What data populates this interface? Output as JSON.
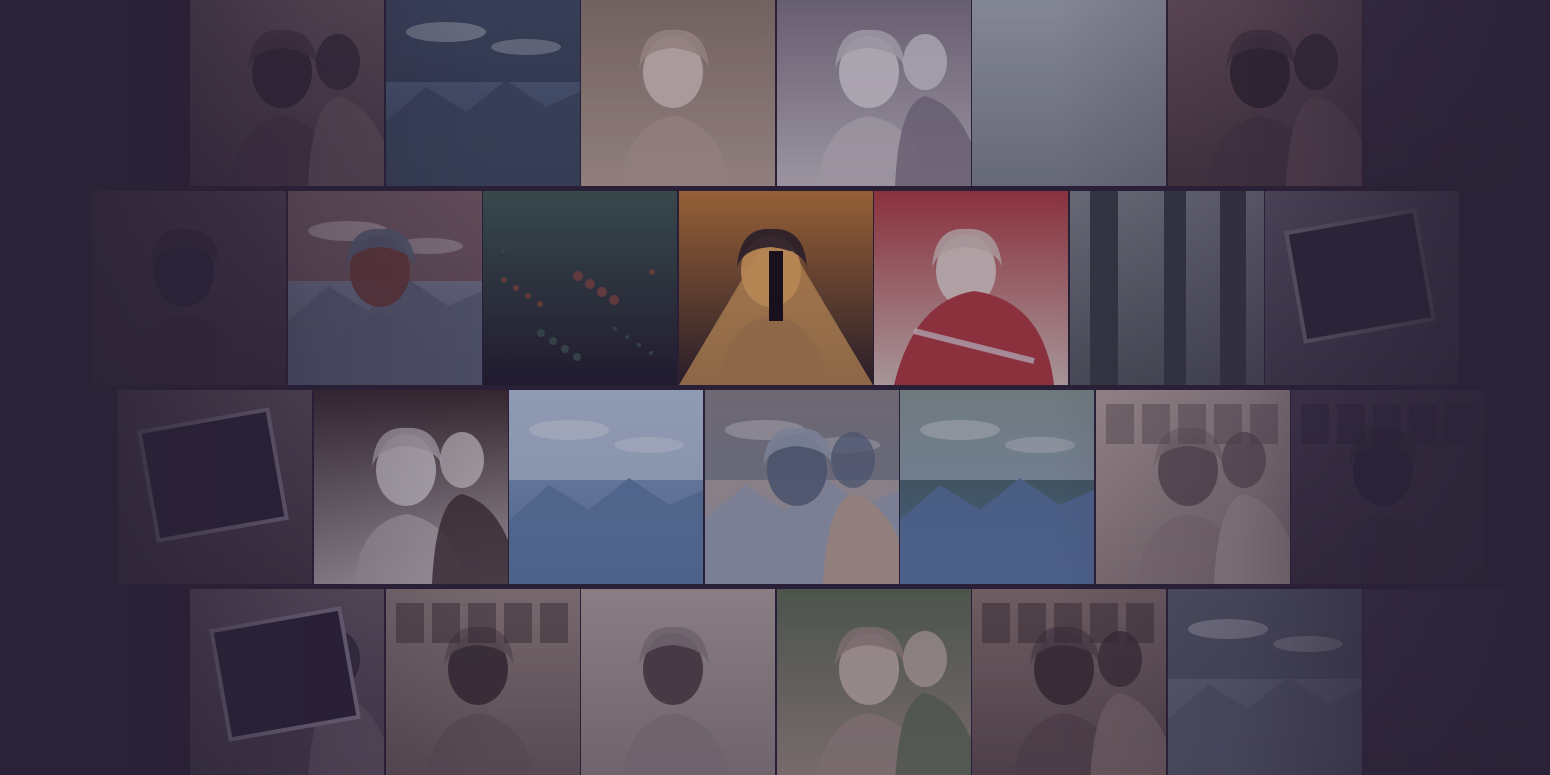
{
  "background_color": "#2a2236",
  "gallery": {
    "rows": [
      {
        "tiles": [
          {
            "subject": "couple-embrace",
            "palette": [
              "#4a3a44",
              "#6d5a5e",
              "#2f2630"
            ]
          },
          {
            "subject": "mountain-cliff",
            "palette": [
              "#3b4a5e",
              "#5f7390",
              "#253040"
            ]
          },
          {
            "subject": "woman-with-pigeon",
            "palette": [
              "#b9a596",
              "#8e7a6e",
              "#e2d3c6"
            ]
          },
          {
            "subject": "couple-selfie-mirror",
            "palette": [
              "#c8c2c6",
              "#7d7483",
              "#e4e0e3"
            ]
          },
          {
            "subject": "foggy-landscape",
            "palette": [
              "#7f8790",
              "#a9b1ba",
              "#5b636e"
            ]
          },
          {
            "subject": "couple-formal",
            "palette": [
              "#4e3c42",
              "#7a5e62",
              "#2e2428"
            ]
          },
          {
            "subject": "dim-interior",
            "palette": [
              "#33293a",
              "#443850",
              "#2a2236"
            ]
          }
        ]
      },
      {
        "tiles": [
          {
            "subject": "portrait-profile",
            "palette": [
              "#3a2e3a",
              "#544450",
              "#2a2236"
            ]
          },
          {
            "subject": "woman-by-lake",
            "palette": [
              "#5a6276",
              "#8a8ea0",
              "#6b3a34"
            ]
          },
          {
            "subject": "fireworks",
            "palette": [
              "#1f1a2a",
              "#3e5a52",
              "#8a4a3c"
            ]
          },
          {
            "subject": "silhouette-bridge",
            "palette": [
              "#2a1f22",
              "#c07a34",
              "#f0b060"
            ]
          },
          {
            "subject": "woman-red-blanket",
            "palette": [
              "#d8c4bc",
              "#b03a3e",
              "#e9ddd6"
            ]
          },
          {
            "subject": "stone-columns",
            "palette": [
              "#545a60",
              "#82888e",
              "#3a3e44"
            ]
          },
          {
            "subject": "framed-photo",
            "palette": [
              "#4a4352",
              "#6c6474",
              "#2e2836"
            ]
          }
        ]
      },
      {
        "tiles": [
          {
            "subject": "photo-on-wall",
            "palette": [
              "#453a44",
              "#62565e",
              "#2a2236"
            ]
          },
          {
            "subject": "couple-with-cat",
            "palette": [
              "#c4bcbc",
              "#3a2a2a",
              "#e8e2e0"
            ]
          },
          {
            "subject": "sky-above-clouds",
            "palette": [
              "#5e7fa8",
              "#8faccc",
              "#dce6f0"
            ]
          },
          {
            "subject": "couple-kiss-mountain",
            "palette": [
              "#9aa6b8",
              "#c2a690",
              "#5a6a80"
            ]
          },
          {
            "subject": "mountain-valley",
            "palette": [
              "#5a7aa8",
              "#3e5a3a",
              "#c8d6e6"
            ]
          },
          {
            "subject": "couple-at-market",
            "palette": [
              "#9c8a86",
              "#c2b0a8",
              "#6a5a5a"
            ]
          },
          {
            "subject": "dim-room-portrait",
            "palette": [
              "#3a3040",
              "#52465a",
              "#2a2236"
            ]
          }
        ]
      },
      {
        "tiles": [
          {
            "subject": "couple-polaroid",
            "palette": [
              "#4a404c",
              "#6a5e68",
              "#2a2236"
            ]
          },
          {
            "subject": "woman-in-room",
            "palette": [
              "#6a5a5a",
              "#968680",
              "#3a2e30"
            ]
          },
          {
            "subject": "woman-at-dinner",
            "palette": [
              "#8a7e7e",
              "#b0a4a0",
              "#4a3e40"
            ]
          },
          {
            "subject": "couple-selfie-forest",
            "palette": [
              "#9a8a82",
              "#5a6a52",
              "#c8b8ae"
            ]
          },
          {
            "subject": "couple-bookshelf",
            "palette": [
              "#5a4a4c",
              "#8a7670",
              "#3a2e30"
            ]
          },
          {
            "subject": "grey-seascape",
            "palette": [
              "#5c6272",
              "#7c8294",
              "#444a58"
            ]
          },
          {
            "subject": "dim-edge",
            "palette": [
              "#342a3c",
              "#443a4e",
              "#2a2236"
            ]
          }
        ]
      }
    ]
  }
}
